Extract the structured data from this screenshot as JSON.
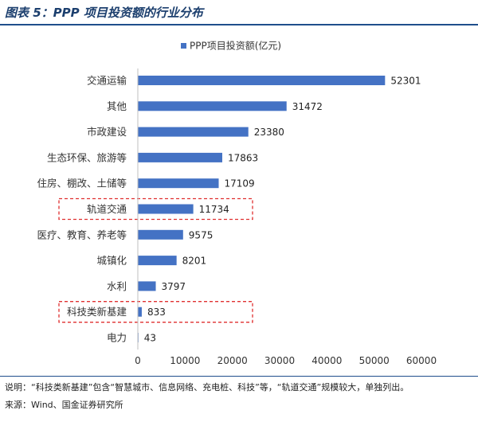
{
  "figure": {
    "title": "图表 5：PPP 项目投资额的行业分布",
    "note": "说明：“科技类新基建”包含“智慧城市、信息网络、充电桩、科技”等，“轨道交通”规模较大，单独列出。",
    "source": "来源：Wind、国金证券研究所"
  },
  "colors": {
    "bar": "#4472c4",
    "title": "#1c3f6e",
    "rule": "#1f4e8c",
    "highlight_box": "#e03030"
  },
  "chart_data": {
    "type": "bar",
    "orientation": "horizontal",
    "categories": [
      "交通运输",
      "其他",
      "市政建设",
      "生态环保、旅游等",
      "住房、棚改、土储等",
      "轨道交通",
      "医疗、教育、养老等",
      "城镇化",
      "水利",
      "科技类新基建",
      "电力"
    ],
    "series": [
      {
        "name": "PPP项目投资额(亿元)",
        "values": [
          52301,
          31472,
          23380,
          17863,
          17109,
          11734,
          9575,
          8201,
          3797,
          833,
          43
        ]
      }
    ],
    "xlim": [
      0,
      60000
    ],
    "xticks": [
      0,
      10000,
      20000,
      30000,
      40000,
      50000,
      60000
    ],
    "grid": false,
    "legend_position": "top-center",
    "highlighted_categories": [
      "轨道交通",
      "科技类新基建"
    ]
  }
}
